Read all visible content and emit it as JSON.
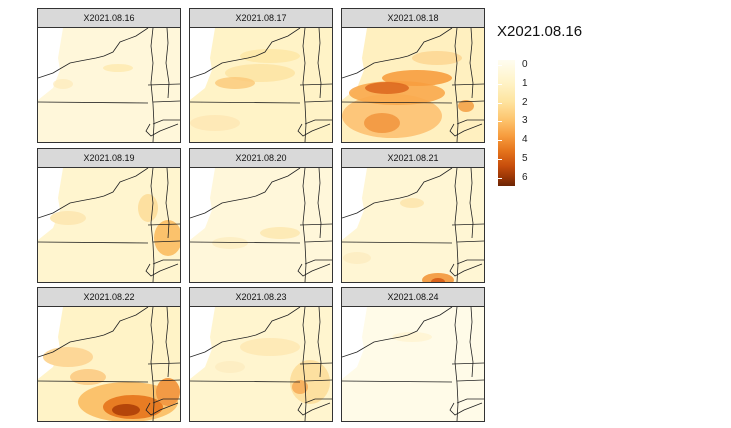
{
  "legend": {
    "title": "X2021.08.16",
    "ticks": [
      "0",
      "1",
      "2",
      "3",
      "4",
      "5",
      "6"
    ],
    "colors": [
      "#fffdf0",
      "#fff3c7",
      "#fee4a0",
      "#fdc56f",
      "#f79d3f",
      "#e5741c",
      "#c84e0c",
      "#9a3606",
      "#6b2404"
    ]
  },
  "panels": [
    {
      "label": "X2021.08.16"
    },
    {
      "label": "X2021.08.17"
    },
    {
      "label": "X2021.08.18"
    },
    {
      "label": "X2021.08.19"
    },
    {
      "label": "X2021.08.20"
    },
    {
      "label": "X2021.08.21"
    },
    {
      "label": "X2021.08.22"
    },
    {
      "label": "X2021.08.23"
    },
    {
      "label": "X2021.08.24"
    }
  ]
}
